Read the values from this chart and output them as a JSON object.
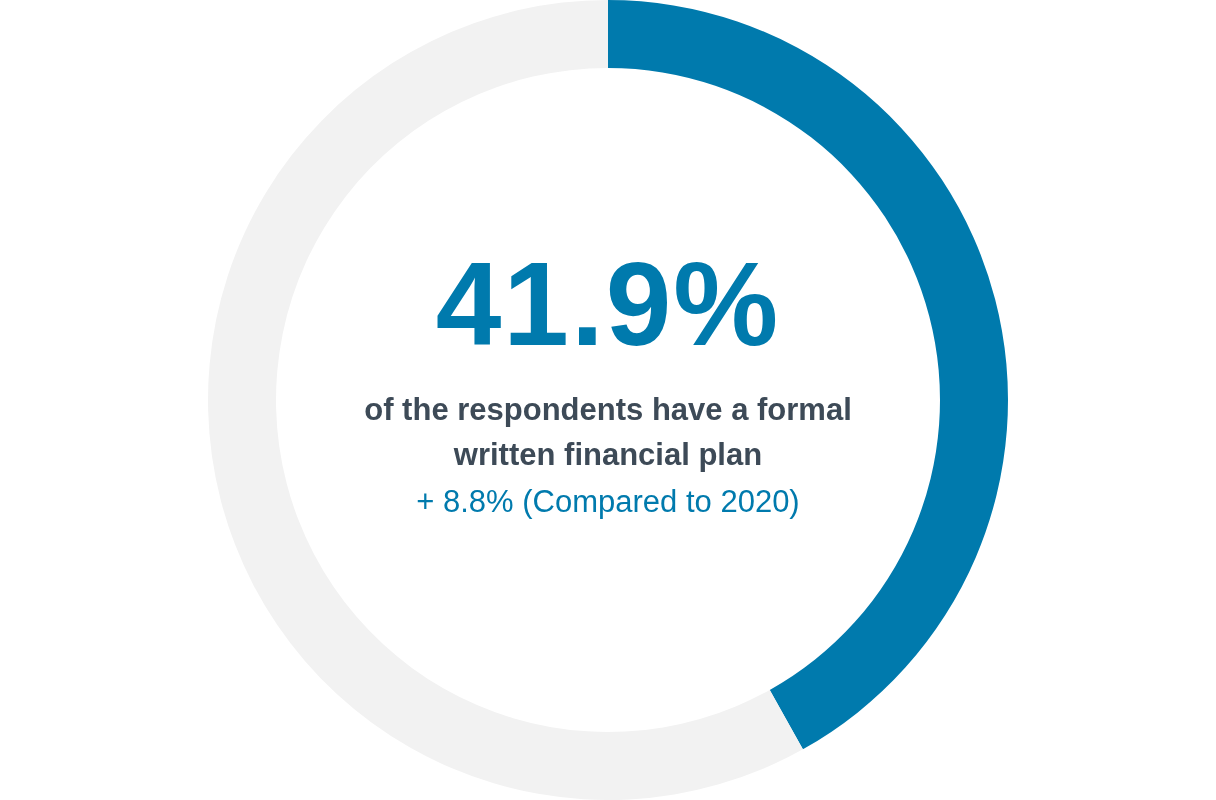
{
  "chart_data": {
    "type": "donut",
    "categories": [
      null,
      null
    ],
    "values": [
      41.9,
      58.1
    ],
    "colors": [
      "#007aad",
      "#f2f2f2"
    ],
    "value_labels": [
      "41.9%",
      null
    ],
    "legend": false,
    "annotations": [
      "of the respondents have a formal written financial plan",
      "+ 8.8% (Compared to 2020)"
    ]
  }
}
